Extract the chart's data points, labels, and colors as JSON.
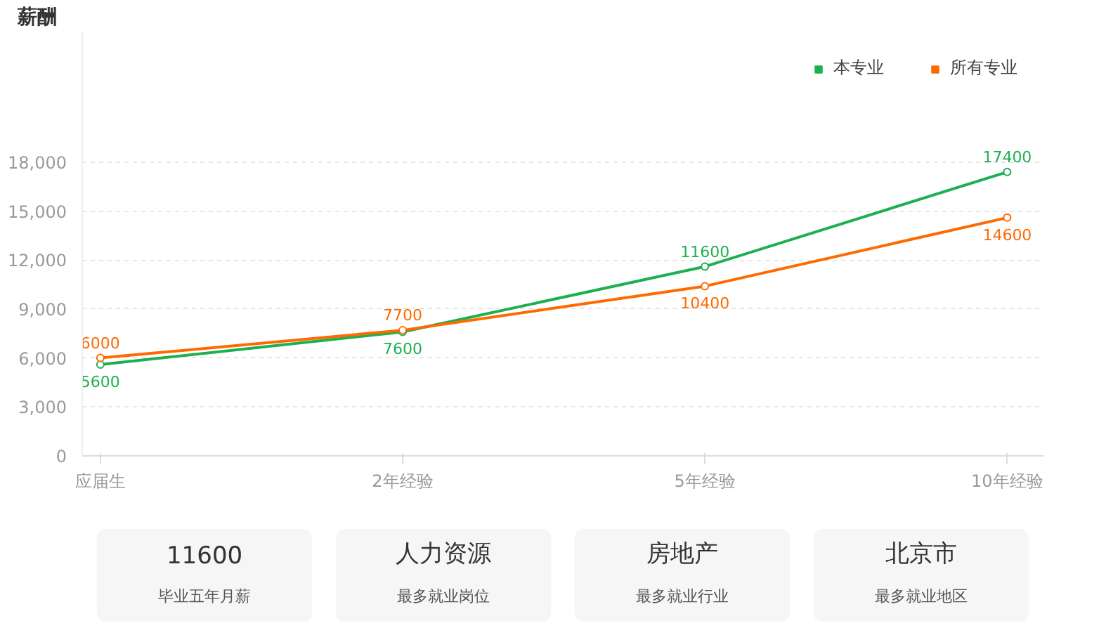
{
  "chart_data": [
    {
      "type": "line",
      "title": "薪酬",
      "categories": [
        "应届生",
        "2年经验",
        "5年经验",
        "10年经验"
      ],
      "series": [
        {
          "name": "本专业",
          "color": "#1db051",
          "values": [
            5600,
            7600,
            11600,
            17400
          ]
        },
        {
          "name": "所有专业",
          "color": "#ff6a00",
          "values": [
            6000,
            7700,
            10400,
            14600
          ]
        }
      ],
      "ylim": [
        0,
        26000
      ],
      "yticks": [
        0,
        {
          "value": 3000,
          "label": "3,000"
        },
        {
          "value": 6000,
          "label": "6,000"
        },
        {
          "value": 9000,
          "label": "9,000"
        },
        {
          "value": 12000,
          "label": "12,000"
        },
        {
          "value": 15000,
          "label": "15,000"
        },
        {
          "value": 18000,
          "label": "18,000"
        }
      ],
      "grid": "y",
      "legend": "top right",
      "marker": "circle",
      "line_style": "solid",
      "data_labels": true
    },
    {
      "type": "other",
      "annotations": [
        "11600",
        "毕业五年月薪",
        "人力资源",
        "最多就业岗位",
        "房地产",
        "最多就业行业",
        "北京市",
        "最多就业地区"
      ]
    }
  ]
}
